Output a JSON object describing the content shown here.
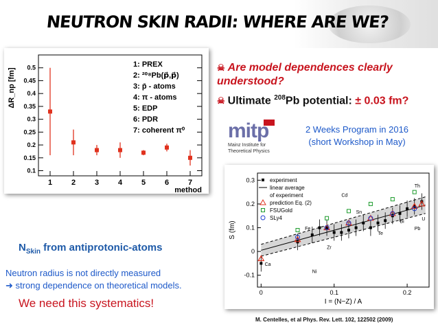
{
  "slide": {
    "title": "NEUTRON SKIN RADII: WHERE ARE WE?",
    "question": "Are model dependences clearly understood?",
    "ultimate": {
      "prefix": "Ultimate ",
      "sup": "208",
      "mid": "Pb potential: ",
      "value": "± 0.03 fm?"
    },
    "program_line1": "2 Weeks Program in 2016",
    "program_line2": "(short Workshop in May)",
    "nskin_main": "N",
    "nskin_sub": "Skin",
    "nskin_rest": " from antiprotonic-atoms",
    "neutron_line1": "Neutron radius is not directly measured",
    "neutron_line2": "➜ strong dependence on theoretical models.",
    "need": "We need this systematics!",
    "reference": "M. Centelles, et al Phys. Rev. Lett. 102, 122502 (2009)",
    "logo": {
      "letters": "mitp",
      "line1": "Mainz Institute for",
      "line2": "Theoretical Physics"
    },
    "colors": {
      "red": "#c8141e",
      "blue": "#1d59c9",
      "accent": "#1e5aa8"
    }
  },
  "chart_data": [
    {
      "type": "scatter",
      "xlabel": "method",
      "ylabel": "ΔR_np [fm]",
      "ylim": [
        0.08,
        0.55
      ],
      "x_ticks": [
        "1",
        "2",
        "3",
        "4",
        "5",
        "6",
        "7"
      ],
      "y_ticks": [
        "0.1",
        "0.15",
        "0.2",
        "0.25",
        "0.3",
        "0.35",
        "0.4",
        "0.45",
        "0.5"
      ],
      "points": [
        {
          "x": 1,
          "y": 0.33,
          "lo": 0.16,
          "hi": 0.5
        },
        {
          "x": 2,
          "y": 0.21,
          "lo": 0.16,
          "hi": 0.26
        },
        {
          "x": 3,
          "y": 0.18,
          "lo": 0.16,
          "hi": 0.2
        },
        {
          "x": 4,
          "y": 0.18,
          "lo": 0.15,
          "hi": 0.21
        },
        {
          "x": 5,
          "y": 0.17,
          "lo": 0.16,
          "hi": 0.18
        },
        {
          "x": 6,
          "y": 0.19,
          "lo": 0.175,
          "hi": 0.205
        },
        {
          "x": 7,
          "y": 0.15,
          "lo": 0.12,
          "hi": 0.18
        }
      ],
      "legend": [
        "1: PREX",
        "2: ²⁰⁸Pb(p⃗,p⃗)",
        "3: p̄ - atoms",
        "4: π - atoms",
        "5: EDP",
        "6: PDR",
        "7: coherent π⁰"
      ]
    },
    {
      "type": "scatter",
      "xlabel": "I = (N−Z) / A",
      "ylabel": "S  (fm)",
      "xlim": [
        -0.005,
        0.23
      ],
      "ylim": [
        -0.15,
        0.33
      ],
      "x_ticks": [
        "0",
        "0.1",
        "0.2"
      ],
      "y_ticks": [
        "-0.1",
        "0",
        "0.1",
        "0.2",
        "0.3"
      ],
      "legend": [
        "experiment",
        "linear average of experiment",
        "prediction Eq. (2)",
        "FSUGold",
        "SLy4"
      ],
      "band": {
        "x0": 0.0,
        "lo0": -0.02,
        "hi0": 0.03,
        "x1": 0.225,
        "lo1": 0.16,
        "hi1": 0.23
      },
      "experiment": [
        {
          "x": 0.0,
          "y": -0.05
        },
        {
          "x": 0.05,
          "y": 0.04
        },
        {
          "x": 0.07,
          "y": 0.07
        },
        {
          "x": 0.08,
          "y": 0.1
        },
        {
          "x": 0.09,
          "y": 0.1
        },
        {
          "x": 0.1,
          "y": 0.08
        },
        {
          "x": 0.11,
          "y": 0.08
        },
        {
          "x": 0.12,
          "y": 0.09
        },
        {
          "x": 0.13,
          "y": 0.1
        },
        {
          "x": 0.14,
          "y": 0.12
        },
        {
          "x": 0.15,
          "y": 0.1
        },
        {
          "x": 0.16,
          "y": 0.12
        },
        {
          "x": 0.17,
          "y": 0.13
        },
        {
          "x": 0.18,
          "y": 0.15
        },
        {
          "x": 0.19,
          "y": 0.16
        },
        {
          "x": 0.2,
          "y": 0.18
        },
        {
          "x": 0.21,
          "y": 0.19
        },
        {
          "x": 0.22,
          "y": 0.21
        }
      ],
      "prediction": [
        {
          "x": 0.0,
          "y": -0.03
        },
        {
          "x": 0.05,
          "y": 0.05
        },
        {
          "x": 0.09,
          "y": 0.1
        },
        {
          "x": 0.12,
          "y": 0.12
        },
        {
          "x": 0.15,
          "y": 0.14
        },
        {
          "x": 0.18,
          "y": 0.16
        },
        {
          "x": 0.21,
          "y": 0.19
        },
        {
          "x": 0.22,
          "y": 0.2
        }
      ],
      "fsugold": [
        {
          "x": 0.05,
          "y": 0.09
        },
        {
          "x": 0.09,
          "y": 0.14
        },
        {
          "x": 0.12,
          "y": 0.17
        },
        {
          "x": 0.15,
          "y": 0.2
        },
        {
          "x": 0.18,
          "y": 0.22
        },
        {
          "x": 0.21,
          "y": 0.25
        }
      ],
      "sly4": [
        {
          "x": 0.05,
          "y": 0.06
        },
        {
          "x": 0.09,
          "y": 0.1
        },
        {
          "x": 0.12,
          "y": 0.12
        },
        {
          "x": 0.15,
          "y": 0.14
        },
        {
          "x": 0.18,
          "y": 0.16
        },
        {
          "x": 0.21,
          "y": 0.18
        }
      ],
      "nuclei_labels": [
        "Ca",
        "Fe",
        "Ni",
        "Zr",
        "Sn",
        "Cd",
        "Te",
        "Pb",
        "Bi",
        "Th",
        "U"
      ]
    }
  ]
}
